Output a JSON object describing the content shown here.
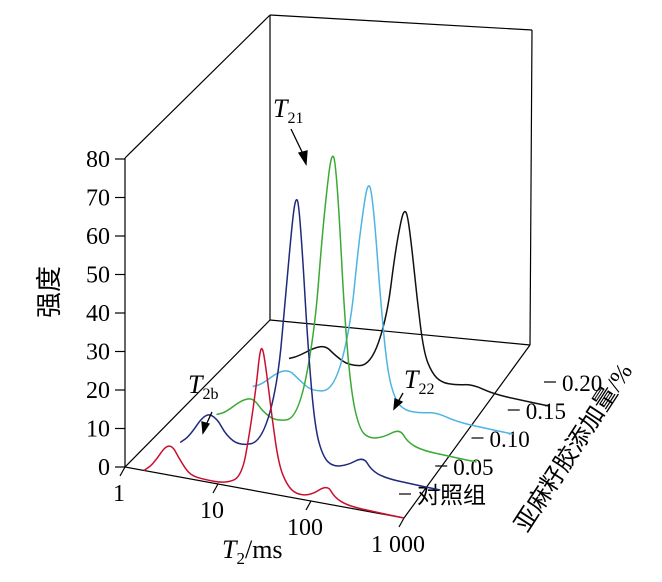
{
  "chart_data": {
    "type": "line",
    "projection": "3d-waterfall",
    "x_axis": {
      "label_main": "T",
      "label_sub": "2",
      "label_rest": "/ms",
      "scale": "log",
      "range": [
        1,
        1000
      ],
      "ticks": [
        "1",
        "10",
        "100",
        "1 000"
      ]
    },
    "y_axis": {
      "label": "强度",
      "range": [
        0,
        80
      ],
      "ticks": [
        "0",
        "10",
        "20",
        "30",
        "40",
        "50",
        "60",
        "70",
        "80"
      ]
    },
    "z_axis": {
      "label": "亚麻籽胶添加量/%",
      "ticks": [
        "对照组",
        "0.05",
        "0.10",
        "0.15",
        "0.20"
      ]
    },
    "series": [
      {
        "name": "对照组",
        "color": "#c8102e",
        "points": [
          [
            1.6,
            0
          ],
          [
            2,
            2
          ],
          [
            3,
            9
          ],
          [
            4,
            4
          ],
          [
            5,
            1
          ],
          [
            7,
            0.5
          ],
          [
            12,
            0.5
          ],
          [
            18,
            3
          ],
          [
            22,
            15
          ],
          [
            26,
            28
          ],
          [
            28,
            36
          ],
          [
            30,
            38
          ],
          [
            33,
            32
          ],
          [
            38,
            20
          ],
          [
            45,
            8
          ],
          [
            55,
            3
          ],
          [
            70,
            1
          ],
          [
            100,
            1.5
          ],
          [
            150,
            5
          ],
          [
            180,
            2
          ],
          [
            250,
            0.5
          ],
          [
            500,
            0.2
          ],
          [
            1000,
            0
          ]
        ]
      },
      {
        "name": "0.05",
        "color": "#1f2a7a",
        "points": [
          [
            1.6,
            0
          ],
          [
            2,
            2
          ],
          [
            3,
            9
          ],
          [
            4,
            8
          ],
          [
            5,
            4
          ],
          [
            7,
            2
          ],
          [
            12,
            4
          ],
          [
            18,
            20
          ],
          [
            22,
            45
          ],
          [
            26,
            64
          ],
          [
            28,
            69
          ],
          [
            30,
            68
          ],
          [
            33,
            55
          ],
          [
            38,
            30
          ],
          [
            45,
            10
          ],
          [
            55,
            3
          ],
          [
            70,
            1
          ],
          [
            100,
            2
          ],
          [
            150,
            5
          ],
          [
            180,
            2
          ],
          [
            250,
            0.5
          ],
          [
            500,
            0.2
          ],
          [
            1000,
            0
          ]
        ]
      },
      {
        "name": "0.10",
        "color": "#3aaa35",
        "points": [
          [
            1.6,
            0
          ],
          [
            2,
            1
          ],
          [
            3,
            5
          ],
          [
            4,
            6
          ],
          [
            5,
            3
          ],
          [
            7,
            1
          ],
          [
            12,
            3
          ],
          [
            18,
            25
          ],
          [
            22,
            52
          ],
          [
            26,
            69
          ],
          [
            28,
            73
          ],
          [
            30,
            72
          ],
          [
            33,
            60
          ],
          [
            38,
            32
          ],
          [
            45,
            12
          ],
          [
            55,
            3
          ],
          [
            70,
            1
          ],
          [
            100,
            2
          ],
          [
            150,
            5
          ],
          [
            180,
            2
          ],
          [
            250,
            0.5
          ],
          [
            500,
            0.2
          ],
          [
            1000,
            0
          ]
        ]
      },
      {
        "name": "0.15",
        "color": "#4fb3e3",
        "points": [
          [
            1.6,
            0
          ],
          [
            2,
            1
          ],
          [
            3,
            5
          ],
          [
            4,
            6
          ],
          [
            5,
            4
          ],
          [
            7,
            1.5
          ],
          [
            12,
            3
          ],
          [
            18,
            20
          ],
          [
            22,
            42
          ],
          [
            26,
            55
          ],
          [
            28,
            58
          ],
          [
            30,
            57
          ],
          [
            33,
            48
          ],
          [
            38,
            28
          ],
          [
            45,
            10
          ],
          [
            55,
            3
          ],
          [
            70,
            1
          ],
          [
            100,
            1
          ],
          [
            150,
            2
          ],
          [
            250,
            0.5
          ],
          [
            500,
            0.2
          ],
          [
            1000,
            0
          ]
        ]
      },
      {
        "name": "0.20",
        "color": "#111111",
        "points": [
          [
            1.6,
            0
          ],
          [
            2,
            1
          ],
          [
            3,
            4
          ],
          [
            4,
            5
          ],
          [
            5,
            3
          ],
          [
            7,
            1
          ],
          [
            12,
            2
          ],
          [
            18,
            15
          ],
          [
            22,
            32
          ],
          [
            26,
            42
          ],
          [
            28,
            44
          ],
          [
            30,
            43
          ],
          [
            33,
            36
          ],
          [
            38,
            22
          ],
          [
            45,
            8
          ],
          [
            55,
            3
          ],
          [
            70,
            1
          ],
          [
            100,
            1
          ],
          [
            150,
            2
          ],
          [
            250,
            0.5
          ],
          [
            500,
            0.2
          ],
          [
            1000,
            0
          ]
        ]
      }
    ],
    "annotations": [
      {
        "id": "t21",
        "main": "T",
        "sub": "21"
      },
      {
        "id": "t22",
        "main": "T",
        "sub": "22"
      },
      {
        "id": "t2b",
        "main": "T",
        "sub": "2b"
      }
    ]
  }
}
